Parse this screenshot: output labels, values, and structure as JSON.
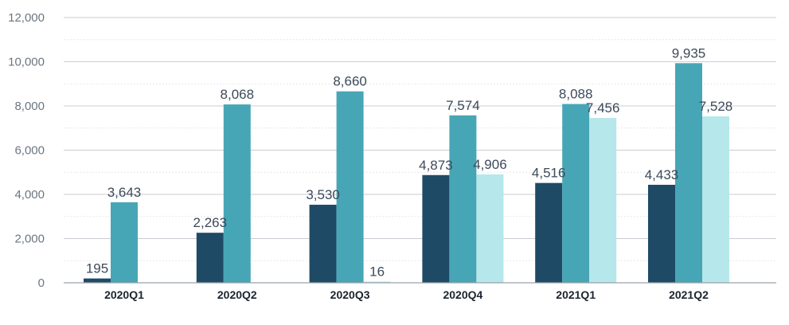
{
  "chart_data": {
    "type": "bar",
    "categories": [
      "2020Q1",
      "2020Q2",
      "2020Q3",
      "2020Q4",
      "2021Q1",
      "2021Q2"
    ],
    "series": [
      {
        "values": [
          195,
          2263,
          3530,
          4873,
          4516,
          4433
        ],
        "color": "#1f4a66"
      },
      {
        "values": [
          3643,
          8068,
          8660,
          7574,
          8088,
          9935
        ],
        "color": "#47a6b6"
      },
      {
        "values": [
          null,
          null,
          16,
          4906,
          7456,
          7528
        ],
        "color": "#b6e7ea"
      }
    ],
    "data_labels": [
      [
        "195",
        "2,263",
        "3,530",
        "4,873",
        "4,516",
        "4,433"
      ],
      [
        "3,643",
        "8,068",
        "8,660",
        "7,574",
        "8,088",
        "9,935"
      ],
      [
        null,
        null,
        "16",
        "4,906",
        "7,456",
        "7,528"
      ]
    ],
    "yticks": [
      "0",
      "2,000",
      "4,000",
      "6,000",
      "8,000",
      "10,000",
      "12,000"
    ],
    "ylim": [
      0,
      12000
    ],
    "grid": true,
    "legend": "none"
  }
}
